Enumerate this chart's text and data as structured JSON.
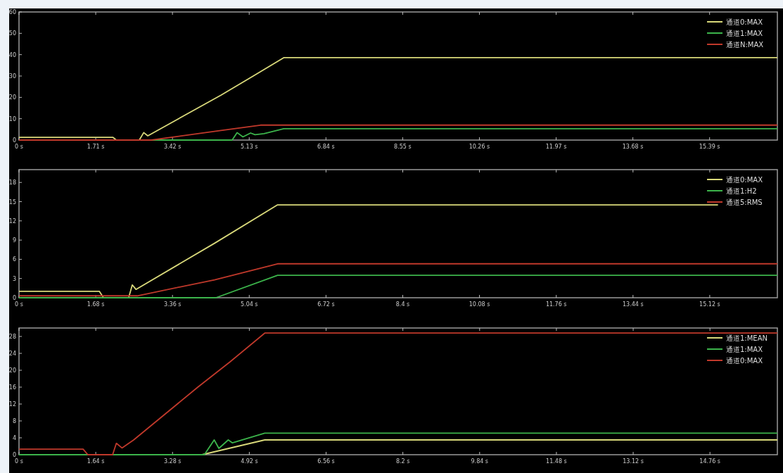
{
  "chart_data": [
    {
      "type": "line",
      "xlim": [
        0,
        16.9
      ],
      "ylim": [
        0,
        60
      ],
      "xticks": [
        {
          "value": 0,
          "label": "0 s"
        },
        {
          "value": 1.71,
          "label": "1.71 s"
        },
        {
          "value": 3.42,
          "label": "3.42 s"
        },
        {
          "value": 5.13,
          "label": "5.13 s"
        },
        {
          "value": 6.84,
          "label": "6.84 s"
        },
        {
          "value": 8.55,
          "label": "8.55 s"
        },
        {
          "value": 10.26,
          "label": "10.26 s"
        },
        {
          "value": 11.97,
          "label": "11.97 s"
        },
        {
          "value": 13.68,
          "label": "13.68 s"
        },
        {
          "value": 15.39,
          "label": "15.39 s"
        }
      ],
      "yticks": [
        0,
        10,
        20,
        30,
        40,
        50,
        60
      ],
      "legend": "top right",
      "grid": false,
      "series": [
        {
          "name": "通道0:MAX",
          "color": "#d9d97a",
          "x": [
            0,
            2.09,
            2.17,
            2.68,
            2.78,
            2.87,
            4.5,
            5.22,
            5.9,
            16.9
          ],
          "values": [
            1.3,
            1.3,
            0,
            0,
            3.5,
            2,
            21,
            30,
            38.6,
            38.6
          ]
        },
        {
          "name": "通道1:MAX",
          "color": "#3cb44b",
          "x": [
            0,
            4.75,
            4.86,
            4.99,
            5.16,
            5.26,
            5.46,
            5.9,
            16.9
          ],
          "values": [
            0,
            0,
            3.5,
            1.5,
            3.3,
            2.5,
            3,
            5.3,
            5.3
          ]
        },
        {
          "name": "通道N:MAX",
          "color": "#c0392b",
          "x": [
            0,
            2.95,
            4.5,
            5.38,
            16.9
          ],
          "values": [
            0,
            0,
            4.5,
            7,
            7
          ]
        }
      ]
    },
    {
      "type": "line",
      "xlim": [
        0,
        16.6
      ],
      "ylim": [
        0,
        20
      ],
      "xticks": [
        {
          "value": 0,
          "label": "0 s"
        },
        {
          "value": 1.68,
          "label": "1.68 s"
        },
        {
          "value": 3.36,
          "label": "3.36 s"
        },
        {
          "value": 5.04,
          "label": "5.04 s"
        },
        {
          "value": 6.72,
          "label": "6.72 s"
        },
        {
          "value": 8.4,
          "label": "8.4 s"
        },
        {
          "value": 10.08,
          "label": "10.08 s"
        },
        {
          "value": 11.76,
          "label": "11.76 s"
        },
        {
          "value": 13.44,
          "label": "13.44 s"
        },
        {
          "value": 15.12,
          "label": "15.12 s"
        }
      ],
      "yticks": [
        0,
        3,
        6,
        9,
        12,
        15,
        18
      ],
      "legend": "top right",
      "grid": false,
      "series": [
        {
          "name": "通道0:MAX",
          "color": "#d9d97a",
          "x": [
            0,
            1.76,
            1.85,
            2.4,
            2.48,
            2.56,
            4.28,
            5.66,
            15.3
          ],
          "values": [
            1,
            1,
            0,
            0,
            2,
            1.3,
            8.5,
            14.5,
            14.5
          ]
        },
        {
          "name": "通道1:H2",
          "color": "#3cb44b",
          "x": [
            0,
            4.31,
            5.66,
            16.6
          ],
          "values": [
            0,
            0,
            3.5,
            3.5
          ]
        },
        {
          "name": "通道5:RMS",
          "color": "#c0392b",
          "x": [
            0,
            2.59,
            4.28,
            5.66,
            16.6
          ],
          "values": [
            0.3,
            0.3,
            2.8,
            5.3,
            5.3
          ]
        }
      ]
    },
    {
      "type": "line",
      "xlim": [
        0,
        16.2
      ],
      "ylim": [
        0,
        30
      ],
      "xticks": [
        {
          "value": 0,
          "label": "0 s"
        },
        {
          "value": 1.64,
          "label": "1.64 s"
        },
        {
          "value": 3.28,
          "label": "3.28 s"
        },
        {
          "value": 4.92,
          "label": "4.92 s"
        },
        {
          "value": 6.56,
          "label": "6.56 s"
        },
        {
          "value": 8.2,
          "label": "8.2 s"
        },
        {
          "value": 9.84,
          "label": "9.84 s"
        },
        {
          "value": 11.48,
          "label": "11.48 s"
        },
        {
          "value": 13.12,
          "label": "13.12 s"
        },
        {
          "value": 14.76,
          "label": "14.76 s"
        }
      ],
      "yticks": [
        0,
        4,
        8,
        12,
        16,
        20,
        24,
        28
      ],
      "legend": "top right",
      "grid": false,
      "series": [
        {
          "name": "通道1:MEAN",
          "color": "#d9d97a",
          "x": [
            0,
            3.91,
            5.25,
            16.2
          ],
          "values": [
            0,
            0,
            3.5,
            3.5
          ]
        },
        {
          "name": "通道1:MAX",
          "color": "#3cb44b",
          "x": [
            0,
            3.96,
            4.17,
            4.27,
            4.47,
            4.56,
            5.25,
            16.2
          ],
          "values": [
            0,
            0,
            3.5,
            1.5,
            3.5,
            2.8,
            5.1,
            5.1
          ]
        },
        {
          "name": "通道0:MAX",
          "color": "#c0392b",
          "x": [
            0,
            1.37,
            1.47,
            2.0,
            2.08,
            2.2,
            2.45,
            3.82,
            4.51,
            5.25,
            16.2
          ],
          "values": [
            1.3,
            1.3,
            0,
            0,
            2.7,
            1.6,
            3.5,
            16,
            22,
            28.8,
            28.8
          ]
        }
      ]
    }
  ]
}
